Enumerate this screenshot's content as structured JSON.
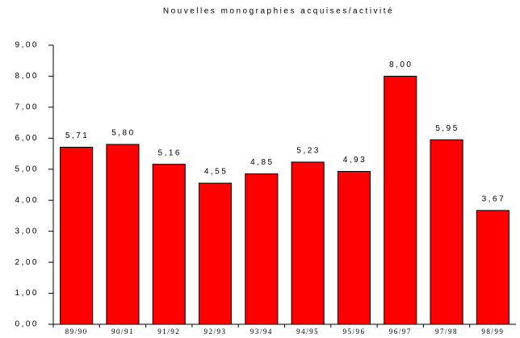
{
  "chart_data": {
    "type": "bar",
    "title": "Nouvelles monographies acquises/activité",
    "categories": [
      "89/90",
      "90/91",
      "91/92",
      "92/93",
      "93/94",
      "94/95",
      "95/96",
      "96/97",
      "97/98",
      "98/99"
    ],
    "values": [
      5.71,
      5.8,
      5.16,
      4.55,
      4.85,
      5.23,
      4.93,
      8.0,
      5.95,
      3.67
    ],
    "value_labels": [
      "5,71",
      "5,80",
      "5,16",
      "4,55",
      "4,85",
      "5,23",
      "4,93",
      "8,00",
      "5,95",
      "3,67"
    ],
    "color": "#ff0000",
    "ylim": [
      0,
      9
    ],
    "yticks": [
      {
        "value": 0,
        "label": "0,00"
      },
      {
        "value": 1,
        "label": "1,00"
      },
      {
        "value": 2,
        "label": "2,00"
      },
      {
        "value": 3,
        "label": "3,00"
      },
      {
        "value": 4,
        "label": "4,00"
      },
      {
        "value": 5,
        "label": "5,00"
      },
      {
        "value": 6,
        "label": "6,00"
      },
      {
        "value": 7,
        "label": "7,00"
      },
      {
        "value": 8,
        "label": "8,00"
      },
      {
        "value": 9,
        "label": "9,00"
      }
    ],
    "grid": false
  }
}
